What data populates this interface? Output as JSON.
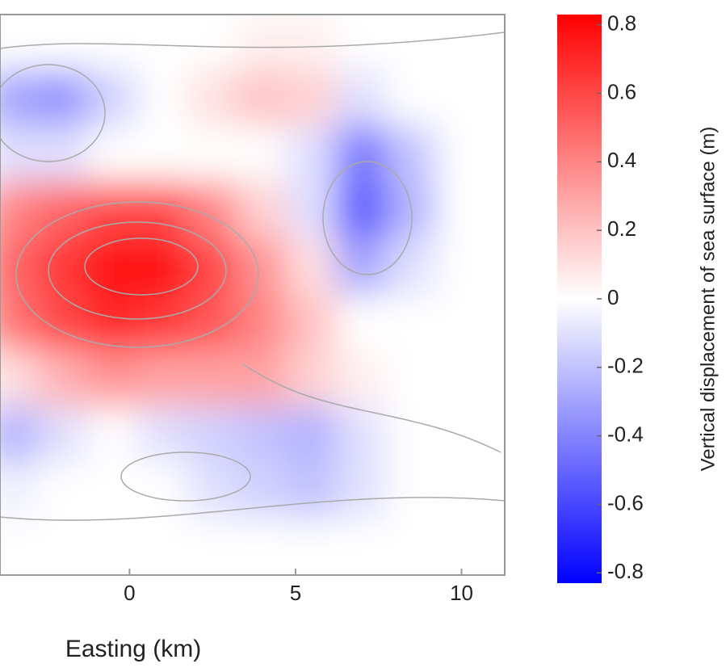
{
  "chart_data": {
    "type": "heatmap",
    "xlabel": "Easting (km)",
    "colorbar_label": "Vertical displacement of sea surface (m)",
    "xlim": [
      -3.9,
      11.3
    ],
    "xticks": [
      0,
      5,
      10
    ],
    "x": [
      -3.5,
      -2,
      -0.5,
      1,
      2.5,
      4,
      5.5,
      7,
      8.5,
      10
    ],
    "z": [
      [
        0,
        0,
        0,
        0,
        0,
        0.05,
        0.05,
        0,
        0,
        0
      ],
      [
        -0.3,
        -0.35,
        -0.15,
        0,
        0.1,
        0.2,
        0.15,
        -0.1,
        0,
        0
      ],
      [
        -0.1,
        -0.1,
        0,
        0,
        0,
        0,
        -0.1,
        -0.45,
        -0.2,
        0
      ],
      [
        0.4,
        0.5,
        0.6,
        0.6,
        0.4,
        0.15,
        -0.1,
        -0.55,
        -0.25,
        0
      ],
      [
        0.5,
        0.65,
        0.8,
        0.8,
        0.6,
        0.35,
        0.1,
        -0.3,
        -0.1,
        0
      ],
      [
        0.45,
        0.6,
        0.7,
        0.65,
        0.55,
        0.4,
        0.2,
        0,
        0,
        0
      ],
      [
        0.1,
        0.25,
        0.35,
        0.3,
        0.3,
        0.3,
        0.15,
        0.05,
        0,
        0
      ],
      [
        -0.25,
        -0.1,
        0,
        -0.1,
        -0.15,
        -0.2,
        -0.25,
        -0.1,
        0,
        0
      ],
      [
        -0.05,
        0,
        0,
        0,
        -0.1,
        -0.15,
        -0.2,
        -0.1,
        0,
        0
      ],
      [
        0,
        0,
        0,
        0,
        0,
        0,
        0,
        0,
        0,
        0
      ]
    ],
    "clim": [
      -0.83,
      0.83
    ],
    "cticks": [
      0.8,
      0.6,
      0.4,
      0.2,
      0,
      -0.2,
      -0.4,
      -0.6,
      -0.8
    ],
    "colors": {
      "low": "#0000ff",
      "mid": "#ffffff",
      "high": "#ff0000"
    }
  }
}
